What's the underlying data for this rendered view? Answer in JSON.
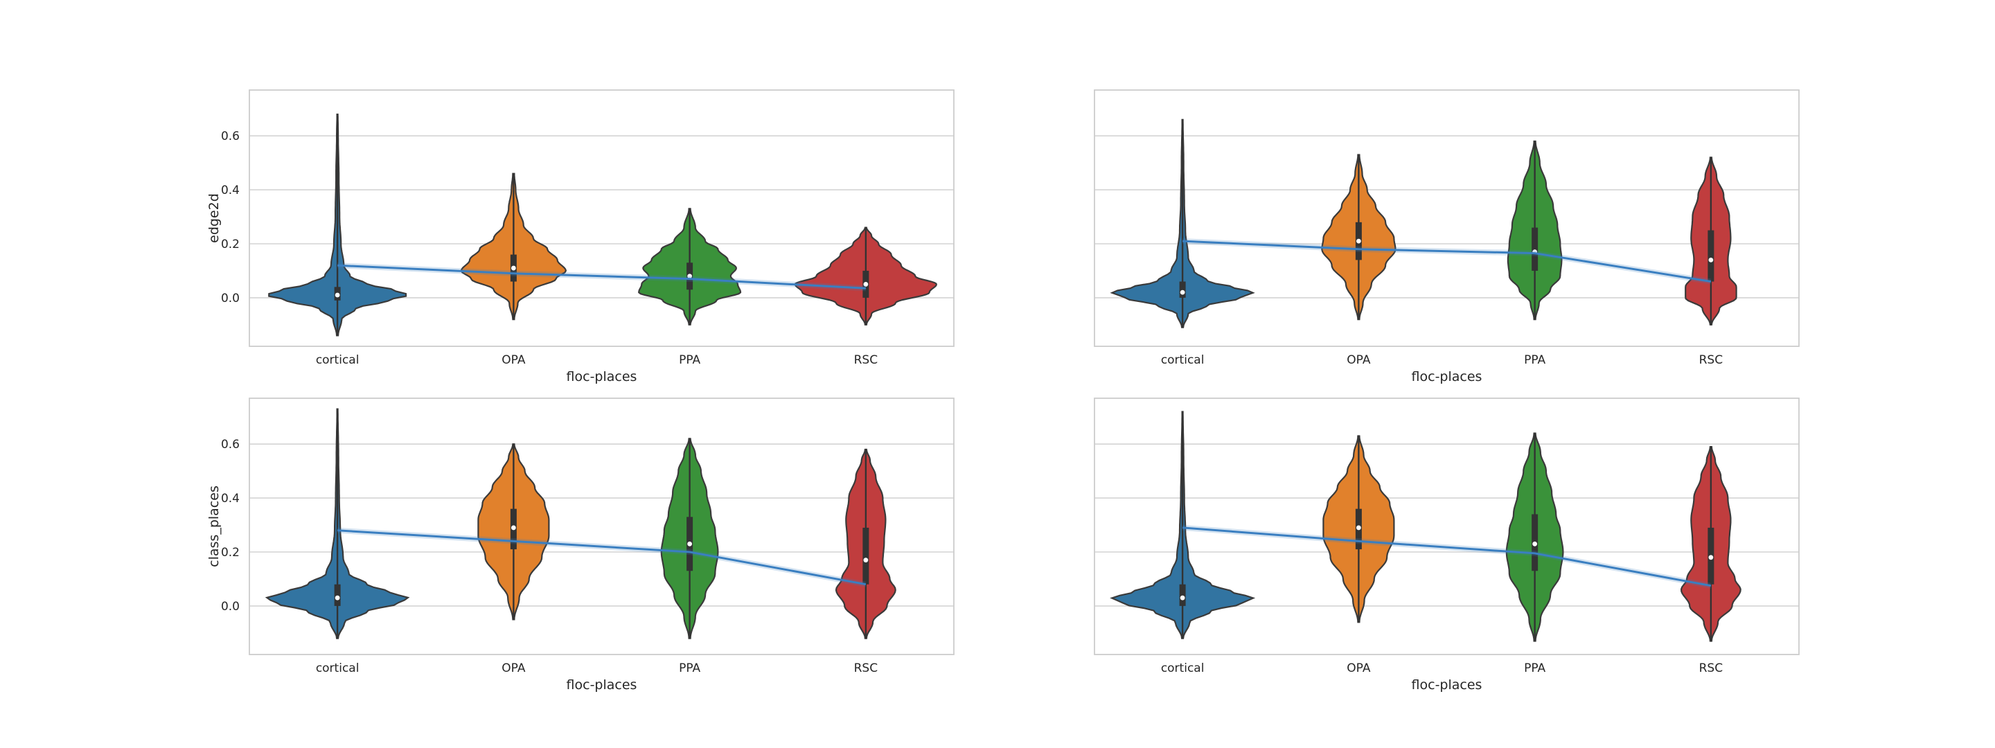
{
  "chart_data": [
    {
      "type": "violin",
      "xlabel": "floc-places",
      "ylabel": "edge2d",
      "categories": [
        "cortical",
        "OPA",
        "PPA",
        "RSC"
      ],
      "yticks": [
        0.0,
        0.2,
        0.4,
        0.6
      ],
      "ytick_labels": [
        "0.0",
        "0.2",
        "0.4",
        "0.6"
      ],
      "ylim": [
        -0.18,
        0.77
      ],
      "grid": "horizontal",
      "colors": [
        "#3274a1",
        "#e1812c",
        "#3a923a",
        "#c03d3e"
      ],
      "trend_color": "#3a7fc1",
      "violins": [
        {
          "category": "cortical",
          "min": -0.14,
          "max": 0.68,
          "q1": -0.01,
          "median": 0.01,
          "q3": 0.04,
          "profile": [
            [
              -0.14,
              0.01
            ],
            [
              -0.08,
              0.06
            ],
            [
              -0.04,
              0.26
            ],
            [
              -0.01,
              0.72
            ],
            [
              0.01,
              1.0
            ],
            [
              0.03,
              0.78
            ],
            [
              0.05,
              0.42
            ],
            [
              0.08,
              0.18
            ],
            [
              0.12,
              0.09
            ],
            [
              0.2,
              0.05
            ],
            [
              0.3,
              0.03
            ],
            [
              0.45,
              0.02
            ],
            [
              0.6,
              0.01
            ],
            [
              0.68,
              0.005
            ]
          ]
        },
        {
          "category": "OPA",
          "min": -0.08,
          "max": 0.46,
          "q1": 0.06,
          "median": 0.11,
          "q3": 0.16,
          "profile": [
            [
              -0.08,
              0.01
            ],
            [
              -0.02,
              0.06
            ],
            [
              0.03,
              0.28
            ],
            [
              0.07,
              0.6
            ],
            [
              0.1,
              0.74
            ],
            [
              0.14,
              0.62
            ],
            [
              0.18,
              0.48
            ],
            [
              0.22,
              0.28
            ],
            [
              0.27,
              0.14
            ],
            [
              0.33,
              0.07
            ],
            [
              0.4,
              0.03
            ],
            [
              0.46,
              0.01
            ]
          ]
        },
        {
          "category": "PPA",
          "min": -0.1,
          "max": 0.33,
          "q1": 0.03,
          "median": 0.08,
          "q3": 0.13,
          "profile": [
            [
              -0.1,
              0.01
            ],
            [
              -0.05,
              0.08
            ],
            [
              -0.01,
              0.38
            ],
            [
              0.02,
              0.72
            ],
            [
              0.05,
              0.68
            ],
            [
              0.08,
              0.58
            ],
            [
              0.11,
              0.66
            ],
            [
              0.14,
              0.54
            ],
            [
              0.18,
              0.4
            ],
            [
              0.21,
              0.22
            ],
            [
              0.26,
              0.08
            ],
            [
              0.33,
              0.01
            ]
          ]
        },
        {
          "category": "RSC",
          "min": -0.1,
          "max": 0.26,
          "q1": 0.0,
          "median": 0.05,
          "q3": 0.1,
          "profile": [
            [
              -0.1,
              0.01
            ],
            [
              -0.06,
              0.08
            ],
            [
              -0.02,
              0.42
            ],
            [
              0.02,
              0.9
            ],
            [
              0.05,
              1.0
            ],
            [
              0.08,
              0.7
            ],
            [
              0.12,
              0.5
            ],
            [
              0.16,
              0.36
            ],
            [
              0.2,
              0.18
            ],
            [
              0.23,
              0.08
            ],
            [
              0.26,
              0.01
            ]
          ]
        }
      ],
      "trend": [
        0.12,
        0.09,
        0.07,
        0.035
      ]
    },
    {
      "type": "violin",
      "xlabel": "floc-places",
      "ylabel": "",
      "categories": [
        "cortical",
        "OPA",
        "PPA",
        "RSC"
      ],
      "yticks": [
        0.0,
        0.2,
        0.4,
        0.6
      ],
      "ytick_labels": [],
      "ylim": [
        -0.18,
        0.77
      ],
      "grid": "horizontal",
      "colors": [
        "#3274a1",
        "#e1812c",
        "#3a923a",
        "#c03d3e"
      ],
      "trend_color": "#3a7fc1",
      "violins": [
        {
          "category": "cortical",
          "min": -0.11,
          "max": 0.66,
          "q1": 0.0,
          "median": 0.02,
          "q3": 0.06,
          "profile": [
            [
              -0.11,
              0.01
            ],
            [
              -0.06,
              0.08
            ],
            [
              -0.03,
              0.34
            ],
            [
              0.0,
              0.82
            ],
            [
              0.02,
              1.0
            ],
            [
              0.04,
              0.7
            ],
            [
              0.06,
              0.36
            ],
            [
              0.1,
              0.16
            ],
            [
              0.15,
              0.08
            ],
            [
              0.25,
              0.04
            ],
            [
              0.35,
              0.025
            ],
            [
              0.5,
              0.015
            ],
            [
              0.66,
              0.005
            ]
          ]
        },
        {
          "category": "OPA",
          "min": -0.08,
          "max": 0.53,
          "q1": 0.14,
          "median": 0.21,
          "q3": 0.28,
          "profile": [
            [
              -0.08,
              0.01
            ],
            [
              -0.02,
              0.06
            ],
            [
              0.05,
              0.18
            ],
            [
              0.12,
              0.38
            ],
            [
              0.18,
              0.52
            ],
            [
              0.22,
              0.5
            ],
            [
              0.28,
              0.38
            ],
            [
              0.34,
              0.24
            ],
            [
              0.4,
              0.12
            ],
            [
              0.46,
              0.05
            ],
            [
              0.53,
              0.01
            ]
          ]
        },
        {
          "category": "PPA",
          "min": -0.08,
          "max": 0.58,
          "q1": 0.1,
          "median": 0.17,
          "q3": 0.26,
          "profile": [
            [
              -0.08,
              0.01
            ],
            [
              -0.02,
              0.06
            ],
            [
              0.03,
              0.22
            ],
            [
              0.08,
              0.36
            ],
            [
              0.14,
              0.38
            ],
            [
              0.2,
              0.36
            ],
            [
              0.27,
              0.32
            ],
            [
              0.34,
              0.26
            ],
            [
              0.42,
              0.16
            ],
            [
              0.5,
              0.07
            ],
            [
              0.58,
              0.01
            ]
          ]
        },
        {
          "category": "RSC",
          "min": -0.1,
          "max": 0.52,
          "q1": 0.06,
          "median": 0.14,
          "q3": 0.25,
          "profile": [
            [
              -0.1,
              0.01
            ],
            [
              -0.04,
              0.12
            ],
            [
              0.0,
              0.36
            ],
            [
              0.04,
              0.36
            ],
            [
              0.08,
              0.26
            ],
            [
              0.14,
              0.24
            ],
            [
              0.22,
              0.28
            ],
            [
              0.3,
              0.26
            ],
            [
              0.38,
              0.18
            ],
            [
              0.45,
              0.08
            ],
            [
              0.52,
              0.01
            ]
          ]
        }
      ],
      "trend": [
        0.21,
        0.18,
        0.165,
        0.06
      ]
    },
    {
      "type": "violin",
      "xlabel": "floc-places",
      "ylabel": "class_places",
      "categories": [
        "cortical",
        "OPA",
        "PPA",
        "RSC"
      ],
      "yticks": [
        0.0,
        0.2,
        0.4,
        0.6
      ],
      "ytick_labels": [
        "0.0",
        "0.2",
        "0.4",
        "0.6"
      ],
      "ylim": [
        -0.18,
        0.77
      ],
      "grid": "horizontal",
      "colors": [
        "#3274a1",
        "#e1812c",
        "#3a923a",
        "#c03d3e"
      ],
      "trend_color": "#3a7fc1",
      "violins": [
        {
          "category": "cortical",
          "min": -0.12,
          "max": 0.73,
          "q1": 0.0,
          "median": 0.03,
          "q3": 0.08,
          "profile": [
            [
              -0.12,
              0.01
            ],
            [
              -0.06,
              0.1
            ],
            [
              -0.02,
              0.42
            ],
            [
              0.01,
              0.86
            ],
            [
              0.03,
              1.0
            ],
            [
              0.05,
              0.74
            ],
            [
              0.08,
              0.42
            ],
            [
              0.12,
              0.16
            ],
            [
              0.18,
              0.08
            ],
            [
              0.28,
              0.04
            ],
            [
              0.4,
              0.025
            ],
            [
              0.55,
              0.015
            ],
            [
              0.73,
              0.005
            ]
          ]
        },
        {
          "category": "OPA",
          "min": -0.05,
          "max": 0.6,
          "q1": 0.21,
          "median": 0.29,
          "q3": 0.36,
          "profile": [
            [
              -0.05,
              0.01
            ],
            [
              0.03,
              0.08
            ],
            [
              0.1,
              0.22
            ],
            [
              0.18,
              0.4
            ],
            [
              0.26,
              0.5
            ],
            [
              0.32,
              0.5
            ],
            [
              0.38,
              0.44
            ],
            [
              0.44,
              0.3
            ],
            [
              0.5,
              0.16
            ],
            [
              0.55,
              0.07
            ],
            [
              0.6,
              0.01
            ]
          ]
        },
        {
          "category": "PPA",
          "min": -0.12,
          "max": 0.62,
          "q1": 0.13,
          "median": 0.23,
          "q3": 0.33,
          "profile": [
            [
              -0.12,
              0.01
            ],
            [
              -0.04,
              0.08
            ],
            [
              0.04,
              0.22
            ],
            [
              0.12,
              0.36
            ],
            [
              0.2,
              0.4
            ],
            [
              0.28,
              0.36
            ],
            [
              0.34,
              0.3
            ],
            [
              0.42,
              0.24
            ],
            [
              0.5,
              0.16
            ],
            [
              0.56,
              0.08
            ],
            [
              0.62,
              0.01
            ]
          ]
        },
        {
          "category": "RSC",
          "min": -0.12,
          "max": 0.58,
          "q1": 0.08,
          "median": 0.17,
          "q3": 0.29,
          "profile": [
            [
              -0.12,
              0.01
            ],
            [
              -0.06,
              0.1
            ],
            [
              0.0,
              0.3
            ],
            [
              0.06,
              0.42
            ],
            [
              0.1,
              0.34
            ],
            [
              0.16,
              0.24
            ],
            [
              0.24,
              0.26
            ],
            [
              0.32,
              0.28
            ],
            [
              0.4,
              0.24
            ],
            [
              0.48,
              0.14
            ],
            [
              0.54,
              0.06
            ],
            [
              0.58,
              0.01
            ]
          ]
        }
      ],
      "trend": [
        0.28,
        0.24,
        0.2,
        0.08
      ]
    },
    {
      "type": "violin",
      "xlabel": "floc-places",
      "ylabel": "",
      "categories": [
        "cortical",
        "OPA",
        "PPA",
        "RSC"
      ],
      "yticks": [
        0.0,
        0.2,
        0.4,
        0.6
      ],
      "ytick_labels": [],
      "ylim": [
        -0.18,
        0.77
      ],
      "grid": "horizontal",
      "colors": [
        "#3274a1",
        "#e1812c",
        "#3a923a",
        "#c03d3e"
      ],
      "trend_color": "#3a7fc1",
      "violins": [
        {
          "category": "cortical",
          "min": -0.12,
          "max": 0.72,
          "q1": 0.0,
          "median": 0.03,
          "q3": 0.08,
          "profile": [
            [
              -0.12,
              0.01
            ],
            [
              -0.06,
              0.1
            ],
            [
              -0.02,
              0.4
            ],
            [
              0.01,
              0.84
            ],
            [
              0.03,
              1.0
            ],
            [
              0.05,
              0.72
            ],
            [
              0.08,
              0.4
            ],
            [
              0.12,
              0.16
            ],
            [
              0.18,
              0.08
            ],
            [
              0.28,
              0.04
            ],
            [
              0.4,
              0.025
            ],
            [
              0.55,
              0.015
            ],
            [
              0.72,
              0.005
            ]
          ]
        },
        {
          "category": "OPA",
          "min": -0.06,
          "max": 0.63,
          "q1": 0.21,
          "median": 0.29,
          "q3": 0.36,
          "profile": [
            [
              -0.06,
              0.01
            ],
            [
              0.02,
              0.08
            ],
            [
              0.1,
              0.22
            ],
            [
              0.18,
              0.4
            ],
            [
              0.26,
              0.5
            ],
            [
              0.32,
              0.5
            ],
            [
              0.38,
              0.44
            ],
            [
              0.44,
              0.3
            ],
            [
              0.5,
              0.16
            ],
            [
              0.56,
              0.07
            ],
            [
              0.63,
              0.01
            ]
          ]
        },
        {
          "category": "PPA",
          "min": -0.13,
          "max": 0.64,
          "q1": 0.13,
          "median": 0.23,
          "q3": 0.34,
          "profile": [
            [
              -0.13,
              0.01
            ],
            [
              -0.05,
              0.08
            ],
            [
              0.04,
              0.22
            ],
            [
              0.12,
              0.36
            ],
            [
              0.2,
              0.4
            ],
            [
              0.28,
              0.36
            ],
            [
              0.34,
              0.3
            ],
            [
              0.42,
              0.24
            ],
            [
              0.5,
              0.16
            ],
            [
              0.57,
              0.08
            ],
            [
              0.64,
              0.01
            ]
          ]
        },
        {
          "category": "RSC",
          "min": -0.13,
          "max": 0.59,
          "q1": 0.08,
          "median": 0.18,
          "q3": 0.29,
          "profile": [
            [
              -0.13,
              0.01
            ],
            [
              -0.06,
              0.1
            ],
            [
              0.0,
              0.3
            ],
            [
              0.06,
              0.42
            ],
            [
              0.1,
              0.34
            ],
            [
              0.16,
              0.24
            ],
            [
              0.24,
              0.26
            ],
            [
              0.32,
              0.28
            ],
            [
              0.4,
              0.24
            ],
            [
              0.48,
              0.14
            ],
            [
              0.54,
              0.06
            ],
            [
              0.59,
              0.01
            ]
          ]
        }
      ],
      "trend": [
        0.29,
        0.24,
        0.195,
        0.075
      ]
    }
  ]
}
